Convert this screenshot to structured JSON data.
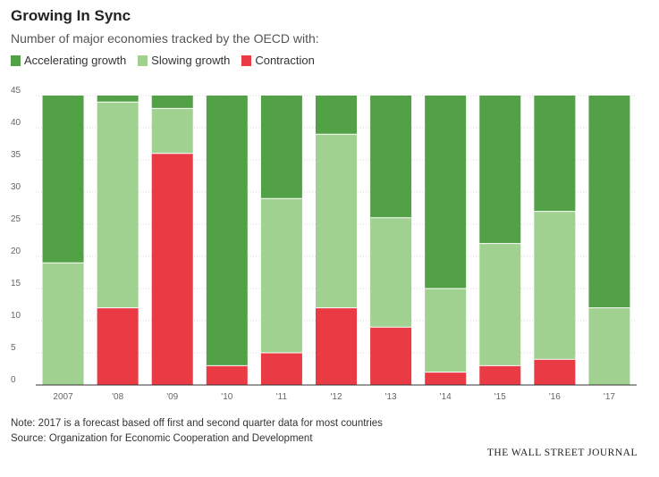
{
  "header": {
    "title": "Growing In Sync",
    "subtitle": "Number of major economies tracked by the OECD with:"
  },
  "legend": {
    "items": [
      {
        "label": "Accelerating growth",
        "color": "#52a146"
      },
      {
        "label": "Slowing growth",
        "color": "#a1d190"
      },
      {
        "label": "Contraction",
        "color": "#ea3a44"
      }
    ]
  },
  "footer": {
    "note": "Note: 2017 is a forecast based off first and second quarter data for most countries",
    "source": "Source: Organization for Economic Cooperation and Development",
    "publisher": "THE WALL STREET JOURNAL"
  },
  "chart_data": {
    "type": "bar",
    "stacked": true,
    "categories": [
      "2007",
      "'08",
      "'09",
      "'10",
      "'11",
      "'12",
      "'13",
      "'14",
      "'15",
      "'16",
      "'17"
    ],
    "series": [
      {
        "name": "Contraction",
        "color": "#ea3a44",
        "values": [
          0,
          12,
          36,
          3,
          5,
          12,
          9,
          2,
          3,
          4,
          0
        ]
      },
      {
        "name": "Slowing growth",
        "color": "#a1d190",
        "values": [
          19,
          32,
          7,
          0,
          24,
          27,
          17,
          13,
          19,
          23,
          12
        ]
      },
      {
        "name": "Accelerating growth",
        "color": "#52a146",
        "values": [
          26,
          1,
          2,
          42,
          16,
          6,
          19,
          30,
          23,
          18,
          33
        ]
      }
    ],
    "ylim": [
      0,
      45
    ],
    "yticks": [
      0,
      5,
      10,
      15,
      20,
      25,
      30,
      35,
      40,
      45
    ],
    "grid": true,
    "legend_position": "top-left",
    "title": "Growing In Sync",
    "xlabel": "",
    "ylabel": ""
  }
}
